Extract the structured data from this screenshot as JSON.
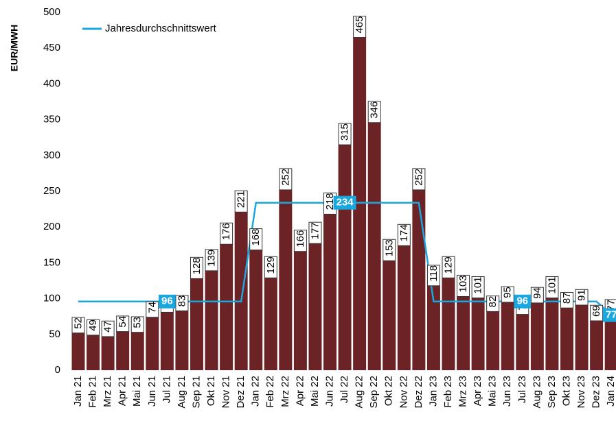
{
  "chart_data": {
    "type": "bar",
    "y_label": "EUR/MWH",
    "categories": [
      "Jan 21",
      "Feb 21",
      "Mrz 21",
      "Apr 21",
      "Mai 21",
      "Jun 21",
      "Jul 21",
      "Aug 21",
      "Sep 21",
      "Okt 21",
      "Nov 21",
      "Dez 21",
      "Jan 22",
      "Feb 22",
      "Mrz 22",
      "Apr 22",
      "Mai 22",
      "Jun 22",
      "Jul 22",
      "Aug 22",
      "Sep 22",
      "Okt 22",
      "Nov 22",
      "Dez 22",
      "Jan 23",
      "Feb 23",
      "Mrz 23",
      "Apr 23",
      "Mai 23",
      "Jun 23",
      "Jul 23",
      "Aug 23",
      "Sep 23",
      "Okt 23",
      "Nov 23",
      "Dez 23",
      "Jan 24"
    ],
    "values": [
      52,
      49,
      47,
      54,
      53,
      74,
      81,
      83,
      128,
      139,
      176,
      221,
      168,
      129,
      252,
      166,
      177,
      218,
      315,
      465,
      346,
      153,
      174,
      252,
      118,
      129,
      103,
      101,
      82,
      95,
      78,
      94,
      101,
      87,
      91,
      69,
      77
    ],
    "color": "#6b2325",
    "series": [
      {
        "name": "Jahresdurchschnittswert",
        "color": "#1aa7e0",
        "values": [
          96,
          96,
          96,
          96,
          96,
          96,
          96,
          96,
          96,
          96,
          96,
          96,
          234,
          234,
          234,
          234,
          234,
          234,
          234,
          234,
          234,
          234,
          234,
          234,
          96,
          96,
          96,
          96,
          96,
          96,
          96,
          96,
          96,
          96,
          96,
          96,
          77
        ]
      }
    ],
    "ylim": [
      0,
      500
    ],
    "yticks": [
      0,
      50,
      100,
      150,
      200,
      250,
      300,
      350,
      400,
      450,
      500
    ]
  }
}
